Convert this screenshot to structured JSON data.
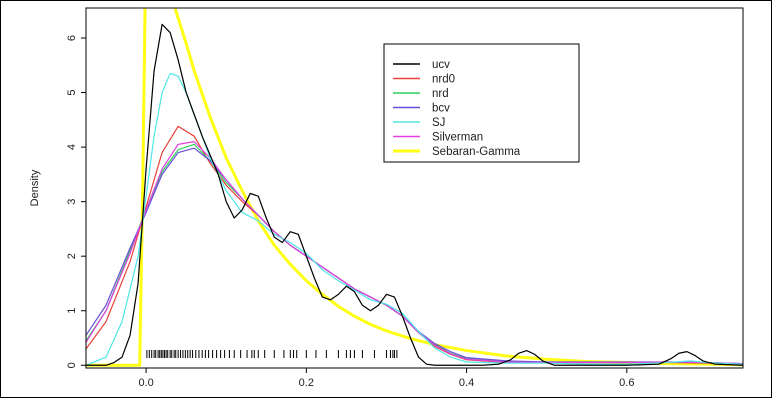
{
  "chart_data": {
    "type": "line",
    "title": "",
    "xlabel": "",
    "ylabel": "Density",
    "xlim": [
      -0.075,
      0.745
    ],
    "ylim": [
      -0.05,
      6.55
    ],
    "x_ticks": [
      0.0,
      0.2,
      0.4,
      0.6
    ],
    "x_tick_labels": [
      "0.0",
      "0.2",
      "0.4",
      "0.6"
    ],
    "y_ticks": [
      0,
      1,
      2,
      3,
      4,
      5,
      6
    ],
    "y_tick_labels": [
      "0",
      "1",
      "2",
      "3",
      "4",
      "5",
      "6"
    ],
    "grid": false,
    "legend_position": "top-right",
    "series": [
      {
        "name": "ucv",
        "color": "#000000",
        "x": [
          -0.075,
          -0.05,
          -0.04,
          -0.03,
          -0.02,
          -0.01,
          0.0,
          0.01,
          0.02,
          0.03,
          0.04,
          0.05,
          0.06,
          0.07,
          0.08,
          0.09,
          0.1,
          0.11,
          0.12,
          0.13,
          0.14,
          0.15,
          0.16,
          0.17,
          0.18,
          0.19,
          0.2,
          0.21,
          0.22,
          0.23,
          0.24,
          0.25,
          0.26,
          0.27,
          0.28,
          0.29,
          0.3,
          0.31,
          0.32,
          0.33,
          0.34,
          0.35,
          0.36,
          0.38,
          0.4,
          0.42,
          0.44,
          0.455,
          0.465,
          0.475,
          0.485,
          0.495,
          0.51,
          0.55,
          0.6,
          0.64,
          0.655,
          0.665,
          0.675,
          0.685,
          0.695,
          0.71,
          0.745
        ],
        "y": [
          0.0,
          0.0,
          0.05,
          0.15,
          0.55,
          1.5,
          3.6,
          5.4,
          6.25,
          6.1,
          5.6,
          5.0,
          4.6,
          4.2,
          3.85,
          3.5,
          3.0,
          2.7,
          2.85,
          3.15,
          3.1,
          2.7,
          2.35,
          2.25,
          2.45,
          2.4,
          2.0,
          1.6,
          1.25,
          1.2,
          1.3,
          1.45,
          1.35,
          1.1,
          1.0,
          1.1,
          1.3,
          1.25,
          0.9,
          0.5,
          0.15,
          0.02,
          0.0,
          0.0,
          0.0,
          0.0,
          0.02,
          0.1,
          0.22,
          0.27,
          0.2,
          0.08,
          0.0,
          0.0,
          0.0,
          0.02,
          0.12,
          0.22,
          0.25,
          0.18,
          0.08,
          0.02,
          0.0
        ]
      },
      {
        "name": "nrd0",
        "color": "#e8403a",
        "x": [
          -0.075,
          -0.05,
          -0.02,
          0.0,
          0.02,
          0.04,
          0.06,
          0.08,
          0.1,
          0.12,
          0.14,
          0.16,
          0.18,
          0.2,
          0.22,
          0.24,
          0.26,
          0.28,
          0.3,
          0.32,
          0.34,
          0.36,
          0.38,
          0.4,
          0.45,
          0.5,
          0.55,
          0.6,
          0.65,
          0.7,
          0.745
        ],
        "y": [
          0.3,
          0.8,
          1.9,
          2.9,
          3.9,
          4.38,
          4.2,
          3.7,
          3.3,
          3.0,
          2.75,
          2.45,
          2.2,
          2.0,
          1.8,
          1.6,
          1.4,
          1.25,
          1.1,
          0.9,
          0.6,
          0.35,
          0.2,
          0.1,
          0.05,
          0.05,
          0.05,
          0.05,
          0.05,
          0.04,
          0.02
        ]
      },
      {
        "name": "nrd",
        "color": "#2fd05a",
        "x": [
          -0.075,
          -0.05,
          -0.02,
          0.0,
          0.02,
          0.04,
          0.06,
          0.08,
          0.1,
          0.12,
          0.14,
          0.16,
          0.18,
          0.2,
          0.22,
          0.24,
          0.26,
          0.28,
          0.3,
          0.32,
          0.34,
          0.36,
          0.38,
          0.4,
          0.45,
          0.5,
          0.55,
          0.6,
          0.65,
          0.7,
          0.745
        ],
        "y": [
          0.45,
          1.0,
          2.1,
          2.85,
          3.55,
          3.95,
          4.05,
          3.75,
          3.35,
          3.05,
          2.75,
          2.45,
          2.2,
          2.0,
          1.8,
          1.6,
          1.4,
          1.25,
          1.1,
          0.9,
          0.6,
          0.38,
          0.22,
          0.12,
          0.06,
          0.05,
          0.05,
          0.05,
          0.06,
          0.05,
          0.03
        ]
      },
      {
        "name": "bcv",
        "color": "#6a4fd8",
        "x": [
          -0.075,
          -0.05,
          -0.02,
          0.0,
          0.02,
          0.04,
          0.06,
          0.08,
          0.1,
          0.12,
          0.14,
          0.16,
          0.18,
          0.2,
          0.22,
          0.24,
          0.26,
          0.28,
          0.3,
          0.32,
          0.34,
          0.36,
          0.38,
          0.4,
          0.45,
          0.5,
          0.55,
          0.6,
          0.65,
          0.7,
          0.745
        ],
        "y": [
          0.55,
          1.1,
          2.15,
          2.8,
          3.5,
          3.9,
          3.98,
          3.75,
          3.4,
          3.05,
          2.75,
          2.45,
          2.2,
          2.0,
          1.8,
          1.6,
          1.4,
          1.25,
          1.1,
          0.9,
          0.62,
          0.4,
          0.25,
          0.14,
          0.08,
          0.06,
          0.06,
          0.06,
          0.06,
          0.05,
          0.03
        ]
      },
      {
        "name": "SJ",
        "color": "#4ee6e6",
        "x": [
          -0.075,
          -0.05,
          -0.03,
          -0.01,
          0.0,
          0.01,
          0.02,
          0.03,
          0.04,
          0.05,
          0.06,
          0.08,
          0.1,
          0.12,
          0.14,
          0.16,
          0.18,
          0.2,
          0.22,
          0.24,
          0.26,
          0.28,
          0.3,
          0.32,
          0.34,
          0.36,
          0.38,
          0.4,
          0.45,
          0.5,
          0.55,
          0.6,
          0.65,
          0.68,
          0.7,
          0.745
        ],
        "y": [
          0.0,
          0.15,
          0.8,
          2.0,
          3.1,
          4.2,
          5.0,
          5.35,
          5.3,
          5.0,
          4.6,
          3.8,
          3.2,
          2.8,
          2.65,
          2.4,
          2.25,
          2.05,
          1.75,
          1.55,
          1.38,
          1.2,
          1.12,
          0.95,
          0.62,
          0.32,
          0.15,
          0.06,
          0.04,
          0.04,
          0.02,
          0.02,
          0.05,
          0.08,
          0.05,
          0.02
        ]
      },
      {
        "name": "Silverman",
        "color": "#e040e0",
        "x": [
          -0.075,
          -0.05,
          -0.02,
          0.0,
          0.02,
          0.04,
          0.06,
          0.08,
          0.1,
          0.12,
          0.14,
          0.16,
          0.18,
          0.2,
          0.22,
          0.24,
          0.26,
          0.28,
          0.3,
          0.32,
          0.34,
          0.36,
          0.38,
          0.4,
          0.45,
          0.5,
          0.55,
          0.6,
          0.65,
          0.7,
          0.745
        ],
        "y": [
          0.42,
          1.0,
          2.05,
          2.85,
          3.6,
          4.05,
          4.1,
          3.8,
          3.4,
          3.05,
          2.75,
          2.45,
          2.2,
          2.0,
          1.8,
          1.6,
          1.4,
          1.25,
          1.1,
          0.9,
          0.6,
          0.37,
          0.21,
          0.11,
          0.06,
          0.05,
          0.05,
          0.05,
          0.06,
          0.05,
          0.03
        ]
      },
      {
        "name": "Sebaran-Gamma",
        "color": "#ffff14",
        "x": [
          -0.075,
          -0.008,
          -0.004,
          0.0,
          0.035,
          0.05,
          0.06,
          0.08,
          0.1,
          0.12,
          0.14,
          0.16,
          0.18,
          0.2,
          0.22,
          0.24,
          0.26,
          0.28,
          0.3,
          0.33,
          0.36,
          0.4,
          0.45,
          0.5,
          0.55,
          0.6,
          0.65,
          0.7,
          0.745
        ],
        "y": [
          0.0,
          0.0,
          3.5,
          8.0,
          6.6,
          5.9,
          5.4,
          4.55,
          3.8,
          3.2,
          2.65,
          2.2,
          1.85,
          1.55,
          1.3,
          1.08,
          0.9,
          0.75,
          0.63,
          0.49,
          0.38,
          0.27,
          0.17,
          0.11,
          0.07,
          0.05,
          0.03,
          0.02,
          0.01
        ]
      }
    ],
    "rug": [
      0.001,
      0.004,
      0.007,
      0.01,
      0.012,
      0.015,
      0.017,
      0.019,
      0.021,
      0.023,
      0.025,
      0.027,
      0.03,
      0.032,
      0.035,
      0.037,
      0.04,
      0.043,
      0.046,
      0.049,
      0.052,
      0.055,
      0.058,
      0.062,
      0.066,
      0.07,
      0.074,
      0.078,
      0.083,
      0.088,
      0.093,
      0.098,
      0.104,
      0.11,
      0.118,
      0.126,
      0.132,
      0.135,
      0.14,
      0.148,
      0.16,
      0.172,
      0.18,
      0.184,
      0.188,
      0.2,
      0.212,
      0.225,
      0.24,
      0.25,
      0.255,
      0.26,
      0.27,
      0.285,
      0.3,
      0.305,
      0.308,
      0.31,
      0.313
    ]
  }
}
